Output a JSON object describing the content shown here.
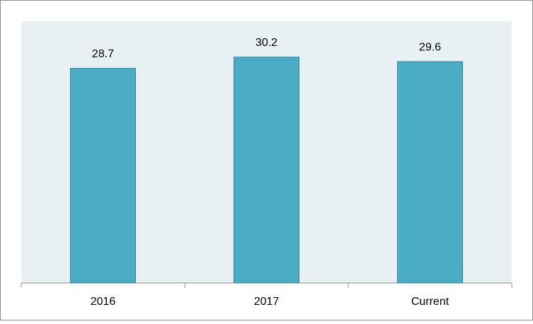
{
  "chart_data": {
    "type": "bar",
    "categories": [
      "2016",
      "2017",
      "Current"
    ],
    "values": [
      28.7,
      30.2,
      29.6
    ],
    "color": "#4bacc6",
    "ylim": [
      0,
      35
    ]
  }
}
